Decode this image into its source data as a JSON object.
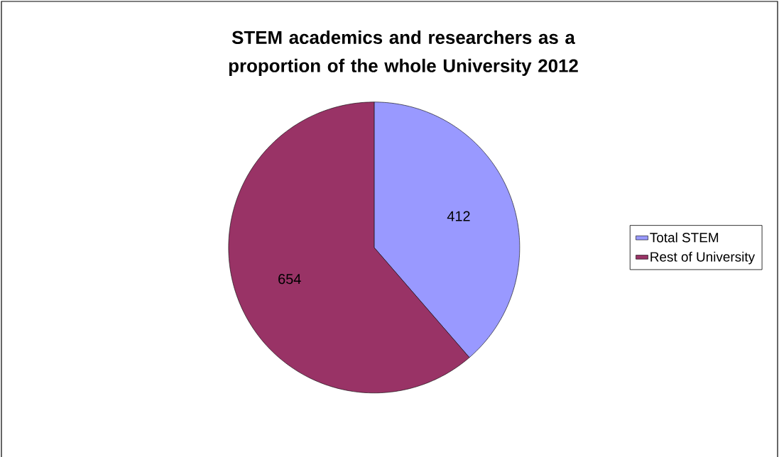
{
  "chart_data": {
    "type": "pie",
    "title": "STEM academics and researchers as a proportion of the whole University 2012",
    "categories": [
      "Total STEM",
      "Rest of University"
    ],
    "values": [
      412,
      654
    ],
    "colors": [
      "#9999ff",
      "#993366"
    ],
    "data_labels": true,
    "legend": "right"
  }
}
